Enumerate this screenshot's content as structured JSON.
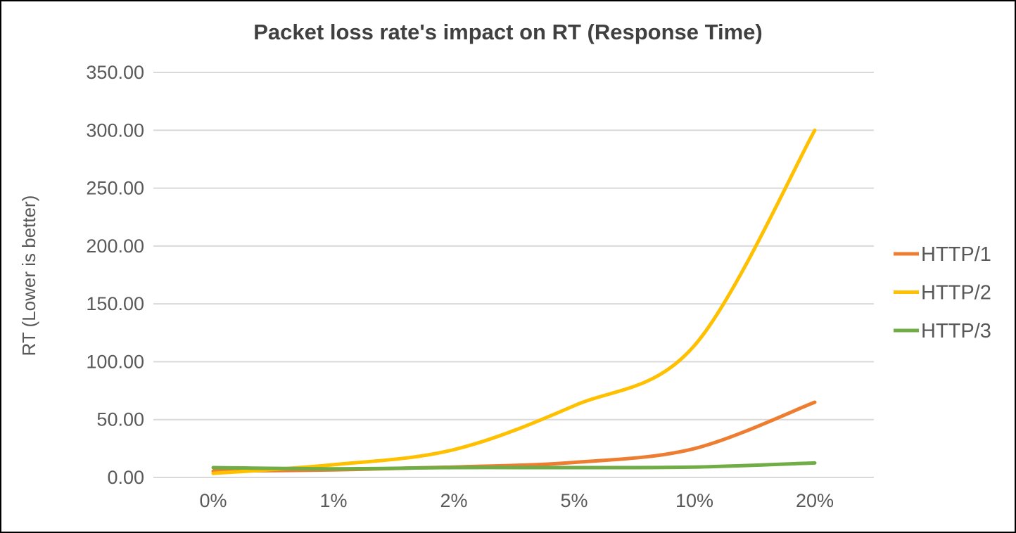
{
  "window": {
    "background": "#FFFFFF",
    "border_color": "#000000"
  },
  "chart_data": {
    "type": "line",
    "title": "Packet loss rate's impact on RT (Response Time)",
    "xlabel": "",
    "ylabel": "RT (Lower is better)",
    "categories": [
      "0%",
      "1%",
      "2%",
      "5%",
      "10%",
      "20%"
    ],
    "series": [
      {
        "name": "HTTP/1",
        "color": "#ED7D31",
        "values": [
          5.5,
          6.5,
          9,
          13,
          25,
          65
        ]
      },
      {
        "name": "HTTP/2",
        "color": "#FFC000",
        "values": [
          3.5,
          11,
          24,
          62,
          114,
          300
        ]
      },
      {
        "name": "HTTP/3",
        "color": "#70AD47",
        "values": [
          8.5,
          7.5,
          8.5,
          8.5,
          9,
          12.5
        ]
      }
    ],
    "y_axis": {
      "min": 0,
      "max": 350,
      "step": 50,
      "tick_decimals": 2
    },
    "ylim": [
      0,
      350
    ],
    "grid": true,
    "smooth_lines": true,
    "legend_position": "right",
    "colors": {
      "gridline": "#D9D9D9",
      "tick_text": "#595959",
      "legend_text": "#595959",
      "title_text": "#404040"
    }
  }
}
